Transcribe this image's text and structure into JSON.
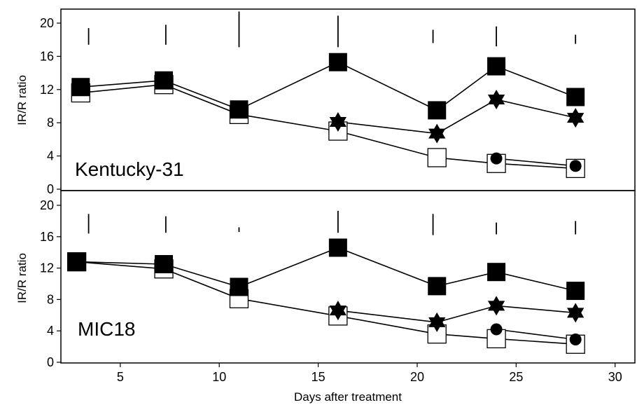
{
  "colors": {
    "ink": "#000000",
    "background": "#ffffff"
  },
  "chart_data": {
    "type": "line",
    "xlabel": "Days after treatment",
    "xlim": [
      2,
      31
    ],
    "x_ticks": [
      5,
      10,
      15,
      20,
      25,
      30
    ],
    "x_tick_labels": [
      "5",
      "10",
      "15",
      "20",
      "25",
      "30"
    ],
    "grid": false,
    "panels": [
      {
        "label": "Kentucky-31",
        "ylabel": "IR/R ratio",
        "ylim": [
          0,
          22
        ],
        "y_ticks": [
          0,
          4,
          8,
          12,
          16,
          20
        ],
        "y_tick_labels": [
          "0",
          "4",
          "8",
          "12",
          "16",
          "20"
        ],
        "error_bars": [
          {
            "x": 3.4,
            "low": 17.4,
            "high": 19.4
          },
          {
            "x": 7.3,
            "low": 17.4,
            "high": 19.8
          },
          {
            "x": 11.0,
            "low": 17.1,
            "high": 21.4
          },
          {
            "x": 16.0,
            "low": 17.1,
            "high": 20.9
          },
          {
            "x": 20.8,
            "low": 17.6,
            "high": 19.2
          },
          {
            "x": 24.0,
            "low": 17.2,
            "high": 19.6
          },
          {
            "x": 28.0,
            "low": 17.5,
            "high": 18.6
          }
        ],
        "series": [
          {
            "marker": "square-filled",
            "points": [
              [
                3.0,
                12.3
              ],
              [
                7.2,
                13.1
              ],
              [
                11.0,
                9.6
              ],
              [
                16.0,
                15.3
              ],
              [
                21.0,
                9.5
              ],
              [
                24.0,
                14.8
              ],
              [
                28.0,
                11.1
              ]
            ]
          },
          {
            "marker": "star",
            "points": [
              [
                16.0,
                8.1
              ],
              [
                21.0,
                6.7
              ],
              [
                24.0,
                10.8
              ],
              [
                28.0,
                8.6
              ]
            ]
          },
          {
            "marker": "circle-filled",
            "points": [
              [
                24.0,
                3.7
              ],
              [
                28.0,
                2.8
              ]
            ]
          },
          {
            "marker": "square-open",
            "points": [
              [
                3.0,
                11.6
              ],
              [
                7.2,
                12.6
              ],
              [
                11.0,
                9.0
              ],
              [
                16.0,
                7.0
              ],
              [
                21.0,
                3.8
              ],
              [
                24.0,
                3.1
              ],
              [
                28.0,
                2.5
              ]
            ]
          }
        ]
      },
      {
        "label": "MIC18",
        "ylabel": "IR/R ratio",
        "ylim": [
          0,
          22
        ],
        "y_ticks": [
          0,
          4,
          8,
          12,
          16,
          20
        ],
        "y_tick_labels": [
          "0",
          "4",
          "8",
          "12",
          "16",
          "20"
        ],
        "error_bars": [
          {
            "x": 3.4,
            "low": 16.4,
            "high": 18.9
          },
          {
            "x": 7.3,
            "low": 16.5,
            "high": 18.6
          },
          {
            "x": 11.0,
            "low": 16.6,
            "high": 17.2
          },
          {
            "x": 16.0,
            "low": 16.5,
            "high": 19.3
          },
          {
            "x": 20.8,
            "low": 16.2,
            "high": 18.9
          },
          {
            "x": 24.0,
            "low": 16.3,
            "high": 17.8
          },
          {
            "x": 28.0,
            "low": 16.3,
            "high": 18.0
          }
        ],
        "series": [
          {
            "marker": "square-filled",
            "points": [
              [
                2.8,
                12.8
              ],
              [
                7.2,
                12.5
              ],
              [
                11.0,
                9.6
              ],
              [
                16.0,
                14.6
              ],
              [
                21.0,
                9.7
              ],
              [
                24.0,
                11.5
              ],
              [
                28.0,
                9.1
              ]
            ]
          },
          {
            "marker": "star",
            "points": [
              [
                16.0,
                6.6
              ],
              [
                21.0,
                5.1
              ],
              [
                24.0,
                7.2
              ],
              [
                28.0,
                6.3
              ]
            ]
          },
          {
            "marker": "circle-filled",
            "points": [
              [
                24.0,
                4.2
              ],
              [
                28.0,
                2.9
              ]
            ]
          },
          {
            "marker": "square-open",
            "points": [
              [
                2.8,
                12.8
              ],
              [
                7.2,
                11.9
              ],
              [
                11.0,
                8.1
              ],
              [
                16.0,
                5.9
              ],
              [
                21.0,
                3.6
              ],
              [
                24.0,
                3.0
              ],
              [
                28.0,
                2.3
              ]
            ]
          }
        ]
      }
    ]
  }
}
